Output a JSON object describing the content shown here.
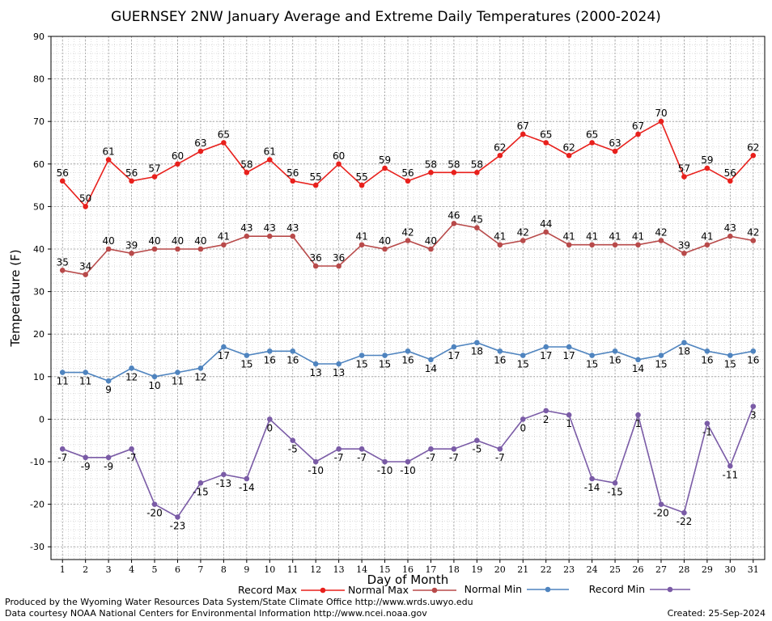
{
  "chart_data": {
    "type": "line",
    "title": "GUERNSEY 2NW January Average and Extreme Daily Temperatures (2000-2024)",
    "xlabel": "Day of Month",
    "ylabel": "Temperature (F)",
    "ylim": [
      -33,
      90
    ],
    "yticks": [
      -30,
      -20,
      -10,
      0,
      10,
      20,
      30,
      40,
      50,
      60,
      70,
      80,
      90
    ],
    "x": [
      1,
      2,
      3,
      4,
      5,
      6,
      7,
      8,
      9,
      10,
      11,
      12,
      13,
      14,
      15,
      16,
      17,
      18,
      19,
      20,
      21,
      22,
      23,
      24,
      25,
      26,
      27,
      28,
      29,
      30,
      31
    ],
    "grid": true,
    "legend_position": "bottom",
    "series": [
      {
        "name": "Record Max",
        "color": "#e8201c",
        "values": [
          56,
          50,
          61,
          56,
          57,
          60,
          63,
          65,
          58,
          61,
          56,
          55,
          60,
          55,
          59,
          56,
          58,
          58,
          58,
          62,
          67,
          65,
          62,
          65,
          63,
          67,
          70,
          57,
          59,
          56,
          62
        ]
      },
      {
        "name": "Normal Max",
        "color": "#b84a4a",
        "values": [
          35,
          34,
          40,
          39,
          40,
          40,
          40,
          41,
          43,
          43,
          43,
          36,
          36,
          41,
          40,
          42,
          40,
          46,
          45,
          41,
          42,
          44,
          41,
          41,
          41,
          41,
          42,
          39,
          41,
          43,
          42
        ]
      },
      {
        "name": "Normal Min",
        "color": "#4f84bf",
        "values": [
          11,
          11,
          9,
          12,
          10,
          11,
          12,
          17,
          15,
          16,
          16,
          13,
          13,
          15,
          15,
          16,
          14,
          17,
          18,
          16,
          15,
          17,
          17,
          15,
          16,
          14,
          15,
          18,
          16,
          15,
          16
        ]
      },
      {
        "name": "Record Min",
        "color": "#7a5ba6",
        "values": [
          -7,
          -9,
          -9,
          -7,
          -20,
          -23,
          -15,
          -13,
          -14,
          0,
          -5,
          -10,
          -7,
          -7,
          -10,
          -10,
          -7,
          -7,
          -5,
          -7,
          0,
          2,
          1,
          -14,
          -15,
          1,
          -20,
          -22,
          -1,
          -11,
          3
        ]
      }
    ]
  },
  "footer": {
    "credit_line1": "Produced by the Wyoming Water Resources Data System/State Climate Office http://www.wrds.uwyo.edu",
    "credit_line2": "Data courtesy NOAA National Centers for Environmental Information http://www.ncei.noaa.gov",
    "created": "Created:  25-Sep-2024"
  }
}
